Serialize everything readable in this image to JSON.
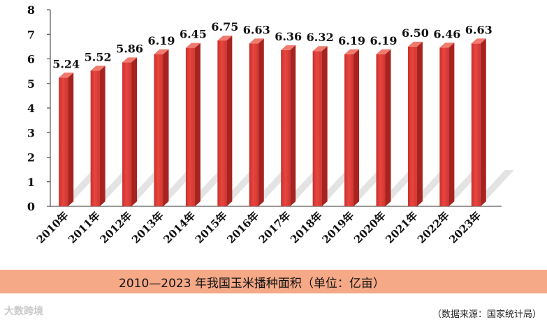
{
  "chart_data": {
    "type": "bar",
    "categories": [
      "2010年",
      "2011年",
      "2012年",
      "2013年",
      "2014年",
      "2015年",
      "2016年",
      "2017年",
      "2018年",
      "2019年",
      "2020年",
      "2021年",
      "2022年",
      "2023年"
    ],
    "values": [
      5.24,
      5.52,
      5.86,
      6.19,
      6.45,
      6.75,
      6.63,
      6.36,
      6.32,
      6.19,
      6.19,
      6.5,
      6.46,
      6.63
    ],
    "value_labels": [
      "5.24",
      "5.52",
      "5.86",
      "6.19",
      "6.45",
      "6.75",
      "6.63",
      "6.36",
      "6.32",
      "6.19",
      "6.19",
      "6.50",
      "6.46",
      "6.63"
    ],
    "ylim": [
      0,
      8
    ],
    "yticks": [
      "0",
      "1",
      "2",
      "3",
      "4",
      "5",
      "6",
      "7",
      "8"
    ],
    "title": "2010—2023 年我国玉米播种面积（单位：亿亩）",
    "bar_color": "#e0403a",
    "bar_top_color": "#f07a6e",
    "bar_side_color": "#a8231f",
    "caption_band_color": "#f5a987",
    "grid": false
  },
  "source": "（数据来源：国家统计局）",
  "watermark": "大数跨境"
}
